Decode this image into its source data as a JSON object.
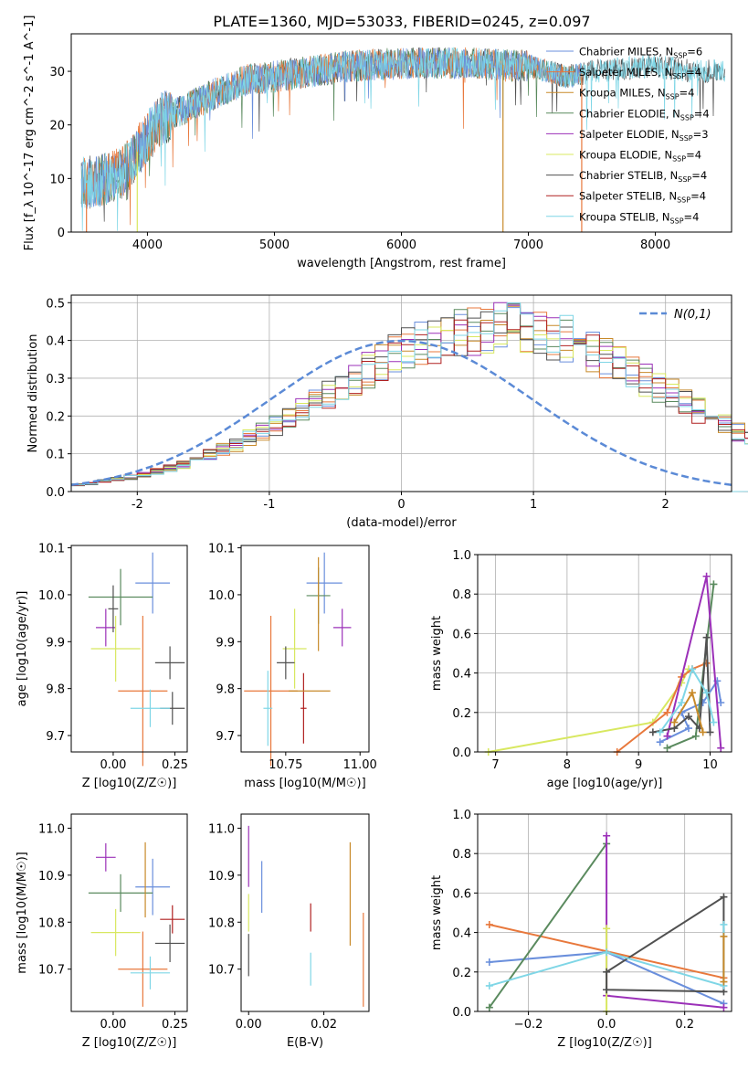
{
  "figure_title": "PLATE=1360, MJD=53033, FIBERID=0245, z=0.097",
  "series_styles": [
    {
      "name": "Chabrier MILES",
      "nssp": "6",
      "color": "#6a8fdc"
    },
    {
      "name": "Salpeter MILES",
      "nssp": "4",
      "color": "#e8783c"
    },
    {
      "name": "Kroupa MILES",
      "nssp": "4",
      "color": "#c88a2a"
    },
    {
      "name": "Chabrier ELODIE",
      "nssp": "4",
      "color": "#5a8a5e"
    },
    {
      "name": "Salpeter ELODIE",
      "nssp": "3",
      "color": "#9b30b8"
    },
    {
      "name": "Kroupa ELODIE",
      "nssp": "4",
      "color": "#d8e860"
    },
    {
      "name": "Chabrier STELIB",
      "nssp": "4",
      "color": "#505050"
    },
    {
      "name": "Salpeter STELIB",
      "nssp": "4",
      "color": "#b02020"
    },
    {
      "name": "Kroupa STELIB",
      "nssp": "4",
      "color": "#7fd6e6"
    }
  ],
  "chart_data": [
    {
      "id": "spectrum",
      "type": "line",
      "title": "",
      "xlabel": "wavelength [Angstrom, rest frame]",
      "ylabel": "Flux [f_λ 10^-17 erg cm^-2 s^-1 A^-1]",
      "xlim": [
        3400,
        8600
      ],
      "ylim": [
        0,
        37
      ],
      "xticks": [
        4000,
        5000,
        6000,
        7000,
        8000
      ],
      "yticks": [
        0,
        10,
        20,
        30
      ],
      "legend_position": "upper-right",
      "continuum_knots": {
        "x": [
          3480,
          3600,
          3800,
          3950,
          4100,
          4300,
          4500,
          4800,
          5000,
          5300,
          5600,
          6000,
          6500,
          7000,
          7300,
          7500,
          8000,
          8300,
          8600
        ],
        "y": [
          9,
          9.5,
          11,
          16,
          21,
          23,
          25.5,
          28.5,
          29,
          30,
          31,
          31.5,
          31.5,
          31,
          29,
          30,
          31,
          30,
          30
        ]
      },
      "drop_lines": [
        {
          "x": 3520,
          "series": "Salpeter MILES"
        },
        {
          "x": 3920,
          "series": "Kroupa ELODIE"
        },
        {
          "x": 6800,
          "series": "Kroupa MILES"
        },
        {
          "x": 7420,
          "series": "Salpeter MILES"
        }
      ]
    },
    {
      "id": "residual_hist",
      "type": "step",
      "xlabel": "(data-model)/error",
      "ylabel": "Normed distribution",
      "xlim": [
        -2.5,
        2.5
      ],
      "ylim": [
        0,
        0.52
      ],
      "xticks": [
        -2,
        -1,
        0,
        1,
        2
      ],
      "yticks": [
        0.0,
        0.1,
        0.2,
        0.3,
        0.4,
        0.5
      ],
      "grid": true,
      "legend_position": "upper-right",
      "gaussian_label": "N(0,1)",
      "gaussian_color": "#5b8ad6",
      "bin_edges_start": -2.5,
      "bin_width": 0.1,
      "base_heights": [
        0.018,
        0.022,
        0.027,
        0.032,
        0.038,
        0.045,
        0.053,
        0.062,
        0.072,
        0.084,
        0.096,
        0.11,
        0.125,
        0.141,
        0.158,
        0.176,
        0.195,
        0.215,
        0.236,
        0.257,
        0.278,
        0.3,
        0.32,
        0.34,
        0.358,
        0.375,
        0.39,
        0.403,
        0.414,
        0.422,
        0.428,
        0.432,
        0.434,
        0.432,
        0.428,
        0.422,
        0.414,
        0.403,
        0.39,
        0.375,
        0.358,
        0.34,
        0.32,
        0.3,
        0.278,
        0.257,
        0.236,
        0.215,
        0.195,
        0.176,
        0.158,
        0.141,
        0.125,
        0.11,
        0.096,
        0.084,
        0.072,
        0.062,
        0.053,
        0.045,
        0.038,
        0.032,
        0.027,
        0.022,
        0.018,
        0.015,
        0.012,
        0.01,
        0.008,
        0.006
      ]
    },
    {
      "id": "z_age",
      "type": "errorbar",
      "xlabel": "Z [log10(Z/Z☉)]",
      "ylabel": "age [log10(age/yr)]",
      "xlim": [
        -0.17,
        0.3
      ],
      "ylim": [
        9.665,
        10.105
      ],
      "xticks": [
        0.0,
        0.25
      ],
      "xtick_labels": [
        "0.00",
        "0.25"
      ],
      "yticks": [
        9.7,
        9.8,
        9.9,
        10.0,
        10.1
      ],
      "points": [
        {
          "series": "Chabrier MILES",
          "x": 0.16,
          "xerr": 0.07,
          "y": 10.025,
          "yerr": 0.065
        },
        {
          "series": "Salpeter MILES",
          "x": 0.12,
          "xerr": 0.1,
          "y": 9.795,
          "yerr": 0.16
        },
        {
          "series": "Chabrier ELODIE",
          "x": 0.03,
          "xerr": 0.13,
          "y": 9.995,
          "yerr": 0.06
        },
        {
          "series": "Salpeter ELODIE",
          "x": -0.03,
          "xerr": 0.04,
          "y": 9.93,
          "yerr": 0.04
        },
        {
          "series": "Kroupa ELODIE",
          "x": 0.01,
          "xerr": 0.1,
          "y": 9.885,
          "yerr": 0.07
        },
        {
          "series": "Chabrier STELIB",
          "x": 0.23,
          "xerr": 0.06,
          "y": 9.855,
          "yerr": 0.035
        },
        {
          "series": "Chabrier STELIB",
          "x": 0.0,
          "xerr": 0.02,
          "y": 9.97,
          "yerr": 0.05
        },
        {
          "series": "Chabrier STELIB",
          "x": 0.24,
          "xerr": 0.05,
          "y": 9.758,
          "yerr": 0.035
        },
        {
          "series": "Kroupa STELIB",
          "x": 0.15,
          "xerr": 0.08,
          "y": 9.758,
          "yerr": 0.04
        }
      ]
    },
    {
      "id": "mass_age",
      "type": "errorbar",
      "xlabel": "mass [log10(M/M☉)]",
      "ylabel": "",
      "xlim": [
        10.6,
        11.03
      ],
      "ylim": [
        9.665,
        10.105
      ],
      "xticks": [
        10.75,
        11.0
      ],
      "xtick_labels": [
        "10.75",
        "11.00"
      ],
      "yticks": [
        9.7,
        9.8,
        9.9,
        10.0,
        10.1
      ],
      "points": [
        {
          "series": "Chabrier MILES",
          "x": 10.88,
          "xerr": 0.06,
          "y": 10.025,
          "yerr": 0.065
        },
        {
          "series": "Salpeter MILES",
          "x": 10.7,
          "xerr": 0.09,
          "y": 9.795,
          "yerr": 0.16
        },
        {
          "series": "Chabrier ELODIE",
          "x": 10.86,
          "xerr": 0.04,
          "y": 9.998,
          "yerr": 0.06
        },
        {
          "series": "Salpeter ELODIE",
          "x": 10.94,
          "xerr": 0.03,
          "y": 9.93,
          "yerr": 0.04
        },
        {
          "series": "Kroupa ELODIE",
          "x": 10.78,
          "xerr": 0.04,
          "y": 9.885,
          "yerr": 0.085
        },
        {
          "series": "Chabrier STELIB",
          "x": 10.75,
          "xerr": 0.03,
          "y": 9.855,
          "yerr": 0.035
        },
        {
          "series": "Salpeter STELIB",
          "x": 10.81,
          "xerr": 0.01,
          "y": 9.758,
          "yerr": 0.075
        },
        {
          "series": "Kroupa STELIB",
          "x": 10.69,
          "xerr": 0.015,
          "y": 9.758,
          "yerr": 0.08
        },
        {
          "series": "Kroupa MILES",
          "x": 10.83,
          "xerr": 0.07,
          "y": 9.795,
          "yerr": 0.0
        },
        {
          "series": "Kroupa MILES",
          "x": 10.86,
          "xerr": 0.0,
          "y": 9.98,
          "yerr": 0.1
        }
      ]
    },
    {
      "id": "age_weight",
      "type": "line",
      "xlabel": "age [log10(age/yr)]",
      "ylabel": "mass weight",
      "xlim": [
        6.75,
        10.3
      ],
      "ylim": [
        0,
        1
      ],
      "xticks": [
        7,
        8,
        9,
        10
      ],
      "yticks": [
        0.0,
        0.2,
        0.4,
        0.6,
        0.8,
        1.0
      ],
      "grid": true,
      "series": [
        {
          "name": "Kroupa ELODIE",
          "x": [
            6.9,
            9.2,
            9.6,
            9.7
          ],
          "y": [
            0.0,
            0.15,
            0.35,
            0.42
          ]
        },
        {
          "name": "Salpeter MILES",
          "x": [
            8.7,
            9.4,
            9.6,
            9.75,
            9.95
          ],
          "y": [
            0.0,
            0.2,
            0.38,
            0.42,
            0.45
          ]
        },
        {
          "name": "Chabrier MILES",
          "x": [
            9.3,
            9.7,
            9.6,
            9.9,
            10.1,
            10.15
          ],
          "y": [
            0.05,
            0.12,
            0.2,
            0.25,
            0.36,
            0.25
          ]
        },
        {
          "name": "Chabrier ELODIE",
          "x": [
            9.4,
            9.8,
            10.05
          ],
          "y": [
            0.02,
            0.08,
            0.85
          ]
        },
        {
          "name": "Salpeter ELODIE",
          "x": [
            9.4,
            9.95,
            10.15
          ],
          "y": [
            0.08,
            0.89,
            0.02
          ]
        },
        {
          "name": "Chabrier STELIB",
          "x": [
            9.2,
            9.5,
            9.7,
            9.85,
            9.95,
            10.0
          ],
          "y": [
            0.1,
            0.12,
            0.18,
            0.12,
            0.58,
            0.1
          ]
        },
        {
          "name": "Kroupa STELIB",
          "x": [
            9.3,
            9.6,
            9.75,
            9.95,
            10.05
          ],
          "y": [
            0.1,
            0.25,
            0.42,
            0.3,
            0.15
          ]
        },
        {
          "name": "Kroupa MILES",
          "x": [
            9.5,
            9.75,
            9.9
          ],
          "y": [
            0.15,
            0.3,
            0.1
          ]
        }
      ]
    },
    {
      "id": "z_mass",
      "type": "errorbar",
      "xlabel": "Z [log10(Z/Z☉)]",
      "ylabel": "mass [log10(M/M☉)]",
      "xlim": [
        -0.17,
        0.3
      ],
      "ylim": [
        10.61,
        11.03
      ],
      "xticks": [
        0.0,
        0.25
      ],
      "xtick_labels": [
        "0.00",
        "0.25"
      ],
      "yticks": [
        10.7,
        10.8,
        10.9,
        11.0
      ],
      "points": [
        {
          "series": "Chabrier MILES",
          "x": 0.16,
          "xerr": 0.07,
          "y": 10.875,
          "yerr": 0.06
        },
        {
          "series": "Salpeter MILES",
          "x": 0.12,
          "xerr": 0.1,
          "y": 10.7,
          "yerr": 0.08
        },
        {
          "series": "Chabrier ELODIE",
          "x": 0.03,
          "xerr": 0.13,
          "y": 10.862,
          "yerr": 0.04
        },
        {
          "series": "Salpeter ELODIE",
          "x": -0.03,
          "xerr": 0.04,
          "y": 10.938,
          "yerr": 0.03
        },
        {
          "series": "Kroupa ELODIE",
          "x": 0.01,
          "xerr": 0.1,
          "y": 10.778,
          "yerr": 0.05
        },
        {
          "series": "Chabrier STELIB",
          "x": 0.23,
          "xerr": 0.06,
          "y": 10.755,
          "yerr": 0.04
        },
        {
          "series": "Salpeter STELIB",
          "x": 0.24,
          "xerr": 0.05,
          "y": 10.806,
          "yerr": 0.03
        },
        {
          "series": "Kroupa STELIB",
          "x": 0.15,
          "xerr": 0.08,
          "y": 10.692,
          "yerr": 0.035
        },
        {
          "series": "Kroupa MILES",
          "x": 0.13,
          "xerr": 0.0,
          "y": 10.89,
          "yerr": 0.08
        }
      ]
    },
    {
      "id": "ebv_mass",
      "type": "errorbar",
      "xlabel": "E(B-V)",
      "ylabel": "",
      "xlim": [
        -0.002,
        0.032
      ],
      "ylim": [
        10.61,
        11.03
      ],
      "xticks": [
        0.0,
        0.02
      ],
      "xtick_labels": [
        "0.00",
        "0.02"
      ],
      "yticks": [
        10.7,
        10.8,
        10.9,
        11.0
      ],
      "points": [
        {
          "series": "Salpeter ELODIE",
          "x": 0.0,
          "xerr": 0.0,
          "y": 10.94,
          "yerr": 0.065
        },
        {
          "series": "Kroupa ELODIE",
          "x": 0.0,
          "xerr": 0.0,
          "y": 10.82,
          "yerr": 0.04
        },
        {
          "series": "Chabrier STELIB",
          "x": 0.0,
          "xerr": 0.0,
          "y": 10.73,
          "yerr": 0.045
        },
        {
          "series": "Chabrier MILES",
          "x": 0.0035,
          "xerr": 0.0,
          "y": 10.875,
          "yerr": 0.055
        },
        {
          "series": "Salpeter STELIB",
          "x": 0.0165,
          "xerr": 0.0,
          "y": 10.81,
          "yerr": 0.03
        },
        {
          "series": "Kroupa STELIB",
          "x": 0.0165,
          "xerr": 0.0,
          "y": 10.7,
          "yerr": 0.035
        },
        {
          "series": "Kroupa MILES",
          "x": 0.027,
          "xerr": 0.0,
          "y": 10.86,
          "yerr": 0.11
        },
        {
          "series": "Salpeter MILES",
          "x": 0.0305,
          "xerr": 0.0,
          "y": 10.72,
          "yerr": 0.1
        }
      ]
    },
    {
      "id": "z_weight",
      "type": "line",
      "xlabel": "Z [log10(Z/Z☉)]",
      "ylabel": "mass weight",
      "xlim": [
        -0.33,
        0.32
      ],
      "ylim": [
        0,
        1
      ],
      "xticks": [
        -0.2,
        0.0,
        0.2
      ],
      "xtick_labels": [
        "−0.2",
        "0.0",
        "0.2"
      ],
      "yticks": [
        0.0,
        0.2,
        0.4,
        0.6,
        0.8,
        1.0
      ],
      "grid": true,
      "series": [
        {
          "name": "Salpeter MILES",
          "x": [
            -0.3,
            0.3
          ],
          "y": [
            0.44,
            0.17
          ]
        },
        {
          "name": "Chabrier MILES",
          "x": [
            -0.3,
            0.0,
            0.3
          ],
          "y": [
            0.25,
            0.3,
            0.04
          ]
        },
        {
          "name": "Chabrier ELODIE",
          "x": [
            -0.3,
            0.0
          ],
          "y": [
            0.02,
            0.85
          ]
        },
        {
          "name": "Salpeter ELODIE",
          "x": [
            0.0,
            0.0,
            0.3
          ],
          "y": [
            0.89,
            0.08,
            0.02
          ]
        },
        {
          "name": "Kroupa ELODIE",
          "x": [
            0.0,
            0.0
          ],
          "y": [
            0.0,
            0.42
          ]
        },
        {
          "name": "Chabrier STELIB",
          "x": [
            0.0,
            0.3,
            0.3,
            0.0,
            0.0
          ],
          "y": [
            0.11,
            0.1,
            0.58,
            0.2,
            0.11
          ]
        },
        {
          "name": "Kroupa STELIB",
          "x": [
            -0.3,
            0.0,
            0.3,
            0.3
          ],
          "y": [
            0.13,
            0.3,
            0.13,
            0.44
          ]
        },
        {
          "name": "Kroupa MILES",
          "x": [
            0.3,
            0.3
          ],
          "y": [
            0.15,
            0.38
          ]
        }
      ]
    }
  ]
}
